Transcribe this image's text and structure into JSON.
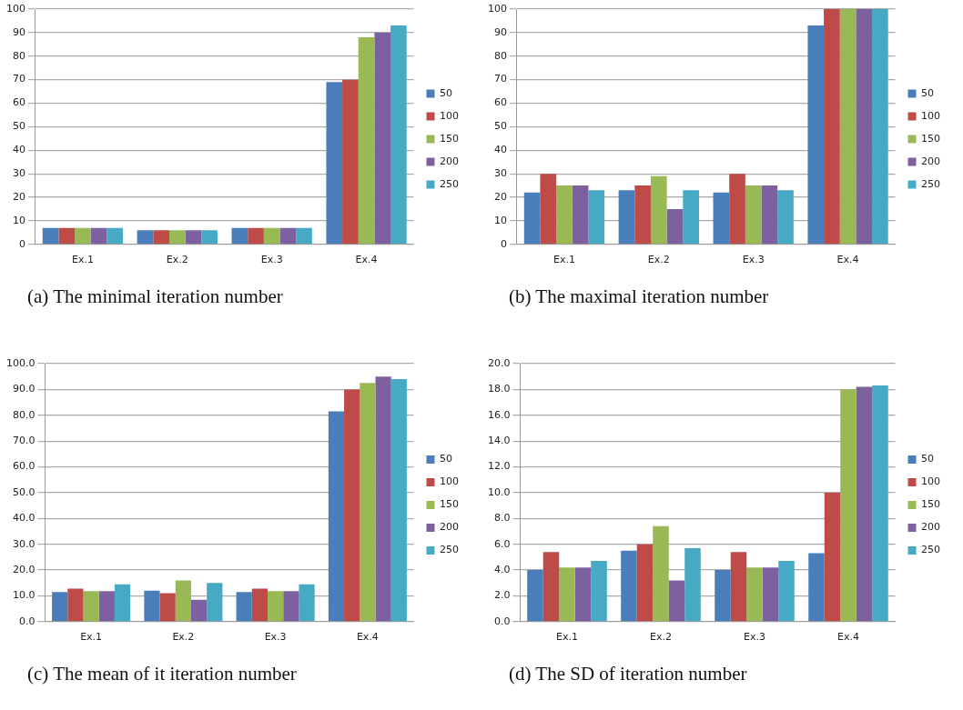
{
  "chart_data": [
    {
      "type": "bar",
      "title": "(a) The minimal iteration number",
      "categories": [
        "Ex.1",
        "Ex.2",
        "Ex.3",
        "Ex.4"
      ],
      "ylim": [
        0,
        100
      ],
      "yticks": [
        0,
        10,
        20,
        30,
        40,
        50,
        60,
        70,
        80,
        90,
        100
      ],
      "grid": "y",
      "legend": "right",
      "series": [
        {
          "name": "50",
          "color": "#4a7ebb",
          "values": [
            7,
            6,
            7,
            69
          ]
        },
        {
          "name": "100",
          "color": "#be4b48",
          "values": [
            7,
            6,
            7,
            70
          ]
        },
        {
          "name": "150",
          "color": "#98b954",
          "values": [
            7,
            6,
            7,
            88
          ]
        },
        {
          "name": "200",
          "color": "#7d60a0",
          "values": [
            7,
            6,
            7,
            90
          ]
        },
        {
          "name": "250",
          "color": "#46aac5",
          "values": [
            7,
            6,
            7,
            93
          ]
        }
      ]
    },
    {
      "type": "bar",
      "title": "(b) The maximal iteration number",
      "categories": [
        "Ex.1",
        "Ex.2",
        "Ex.3",
        "Ex.4"
      ],
      "ylim": [
        0,
        100
      ],
      "yticks": [
        0,
        10,
        20,
        30,
        40,
        50,
        60,
        70,
        80,
        90,
        100
      ],
      "grid": "y",
      "legend": "right",
      "series": [
        {
          "name": "50",
          "color": "#4a7ebb",
          "values": [
            22,
            23,
            22,
            93
          ]
        },
        {
          "name": "100",
          "color": "#be4b48",
          "values": [
            30,
            25,
            30,
            100
          ]
        },
        {
          "name": "150",
          "color": "#98b954",
          "values": [
            25,
            29,
            25,
            100
          ]
        },
        {
          "name": "200",
          "color": "#7d60a0",
          "values": [
            25,
            15,
            25,
            100
          ]
        },
        {
          "name": "250",
          "color": "#46aac5",
          "values": [
            23,
            23,
            23,
            100
          ]
        }
      ]
    },
    {
      "type": "bar",
      "title": "(c) The mean of it iteration number",
      "categories": [
        "Ex.1",
        "Ex.2",
        "Ex.3",
        "Ex.4"
      ],
      "ylim": [
        0,
        100
      ],
      "yticks": [
        {
          "value": 0,
          "label": "0.0"
        },
        {
          "value": 10,
          "label": "10.0"
        },
        {
          "value": 20,
          "label": "20.0"
        },
        {
          "value": 30,
          "label": "30.0"
        },
        {
          "value": 40,
          "label": "40.0"
        },
        {
          "value": 50,
          "label": "50.0"
        },
        {
          "value": 60,
          "label": "60.0"
        },
        {
          "value": 70,
          "label": "70.0"
        },
        {
          "value": 80,
          "label": "80.0"
        },
        {
          "value": 90,
          "label": "90.0"
        },
        {
          "value": 100,
          "label": "100.0"
        }
      ],
      "grid": "y",
      "legend": "right",
      "series": [
        {
          "name": "50",
          "color": "#4a7ebb",
          "values": [
            11.5,
            12,
            11.5,
            81.5
          ]
        },
        {
          "name": "100",
          "color": "#be4b48",
          "values": [
            12.8,
            11,
            12.8,
            90
          ]
        },
        {
          "name": "150",
          "color": "#98b954",
          "values": [
            11.8,
            16,
            11.8,
            92.5
          ]
        },
        {
          "name": "200",
          "color": "#7d60a0",
          "values": [
            11.8,
            8.5,
            11.8,
            95
          ]
        },
        {
          "name": "250",
          "color": "#46aac5",
          "values": [
            14.5,
            15,
            14.5,
            94
          ]
        }
      ]
    },
    {
      "type": "bar",
      "title": "(d) The SD of iteration number",
      "categories": [
        "Ex.1",
        "Ex.2",
        "Ex.3",
        "Ex.4"
      ],
      "ylim": [
        0,
        20
      ],
      "yticks": [
        {
          "value": 0,
          "label": "0.0"
        },
        {
          "value": 2,
          "label": "2.0"
        },
        {
          "value": 4,
          "label": "4.0"
        },
        {
          "value": 6,
          "label": "6.0"
        },
        {
          "value": 8,
          "label": "8.0"
        },
        {
          "value": 10,
          "label": "10.0"
        },
        {
          "value": 12,
          "label": "12.0"
        },
        {
          "value": 14,
          "label": "14.0"
        },
        {
          "value": 16,
          "label": "16.0"
        },
        {
          "value": 18,
          "label": "18.0"
        },
        {
          "value": 20,
          "label": "20.0"
        }
      ],
      "grid": "y",
      "legend": "right",
      "series": [
        {
          "name": "50",
          "color": "#4a7ebb",
          "values": [
            4.0,
            5.5,
            4.0,
            5.3
          ]
        },
        {
          "name": "100",
          "color": "#be4b48",
          "values": [
            5.4,
            6.0,
            5.4,
            10.0
          ]
        },
        {
          "name": "150",
          "color": "#98b954",
          "values": [
            4.2,
            7.4,
            4.2,
            18.0
          ]
        },
        {
          "name": "200",
          "color": "#7d60a0",
          "values": [
            4.2,
            3.2,
            4.2,
            18.2
          ]
        },
        {
          "name": "250",
          "color": "#46aac5",
          "values": [
            4.7,
            5.7,
            4.7,
            18.3
          ]
        }
      ]
    }
  ]
}
